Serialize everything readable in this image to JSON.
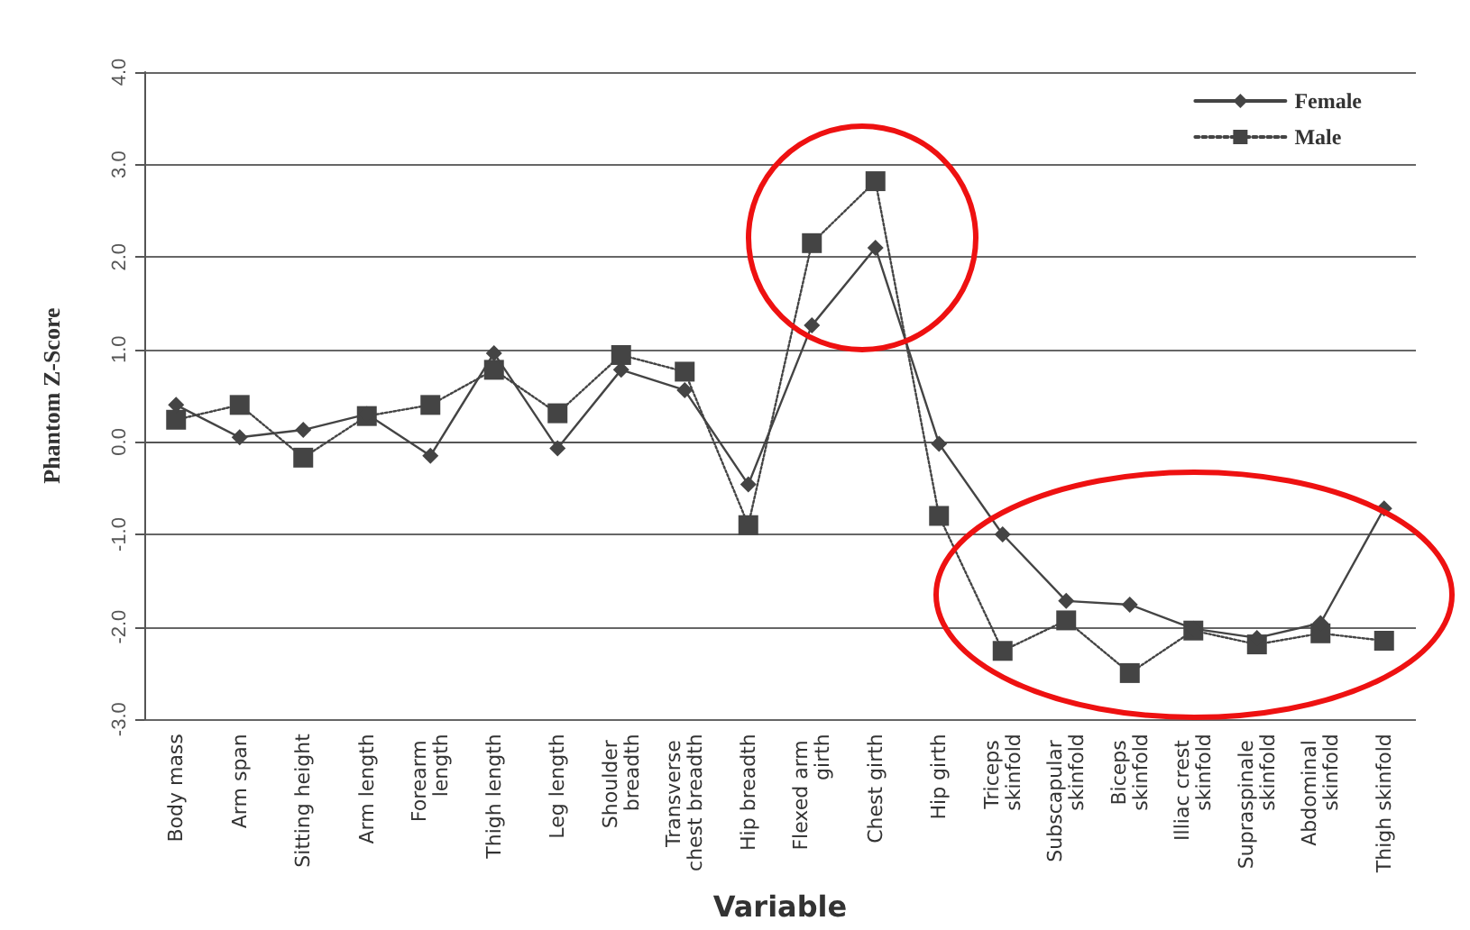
{
  "chart_data": {
    "type": "line",
    "xlabel": "Variable",
    "ylabel": "Phantom Z-Score",
    "categories": [
      "Body mass",
      "Arm span",
      "Sitting height",
      "Arm length",
      "Forearm length",
      "Thigh length",
      "Leg length",
      "Shoulder breadth",
      "Transverse chest breadth",
      "Hip breadth",
      "Flexed arm girth",
      "Chest girth",
      "Hip girth",
      "Triceps skinfold",
      "Subscapular skinfold",
      "Biceps skinfold",
      "Illiac crest skinfold",
      "Supraspinale skinfold",
      "Abdominal skinfold",
      "Thigh skinfold"
    ],
    "series": [
      {
        "name": "Female",
        "color": "#444444",
        "marker": "diamond",
        "line_style": "solid",
        "values": [
          0.4,
          0.05,
          0.13,
          0.3,
          -0.15,
          0.96,
          -0.07,
          0.78,
          0.56,
          -0.46,
          1.26,
          2.1,
          -0.02,
          -1.0,
          -1.72,
          -1.76,
          -2.02,
          -2.12,
          -1.96,
          -0.72
        ]
      },
      {
        "name": "Male",
        "color": "#444444",
        "marker": "square",
        "line_style": "dotted",
        "values": [
          0.24,
          0.4,
          -0.17,
          0.28,
          0.4,
          0.78,
          0.31,
          0.94,
          0.76,
          -0.9,
          2.15,
          2.82,
          -0.8,
          -2.26,
          -1.93,
          -2.5,
          -2.04,
          -2.19,
          -2.07,
          -2.15
        ]
      }
    ],
    "ylim": [
      -3,
      4
    ],
    "yticks": [
      {
        "value": -3,
        "label": "-3.0"
      },
      {
        "value": -2,
        "label": "-2.0"
      },
      {
        "value": -1,
        "label": "-1.0"
      },
      {
        "value": 0,
        "label": "0.0"
      },
      {
        "value": 1,
        "label": "1.0"
      },
      {
        "value": 2,
        "label": "2.0"
      },
      {
        "value": 3,
        "label": "3.0"
      },
      {
        "value": 4,
        "label": "4.0"
      }
    ],
    "grid": "y",
    "legend": "top right"
  }
}
